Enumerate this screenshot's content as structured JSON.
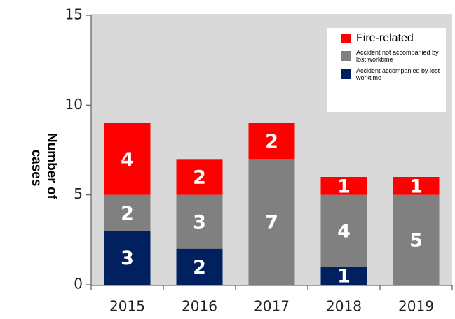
{
  "chart_data": {
    "type": "stacked_bar",
    "y_label": "Number of cases",
    "categories": [
      "2015",
      "2016",
      "2017",
      "2018",
      "2019"
    ],
    "series": [
      {
        "name": "Accident accompanied by lost worktime",
        "color": "#002060",
        "values": [
          3,
          2,
          0,
          1,
          0
        ]
      },
      {
        "name": "Accident not accompanied by lost worktime",
        "color": "#808080",
        "values": [
          2,
          3,
          7,
          4,
          5
        ]
      },
      {
        "name": "Fire-related",
        "color": "#ff0000",
        "values": [
          4,
          2,
          2,
          1,
          1
        ]
      }
    ],
    "ylim": [
      0,
      15
    ],
    "yticks": [
      0,
      5,
      10,
      15
    ],
    "legend": "upper right"
  }
}
